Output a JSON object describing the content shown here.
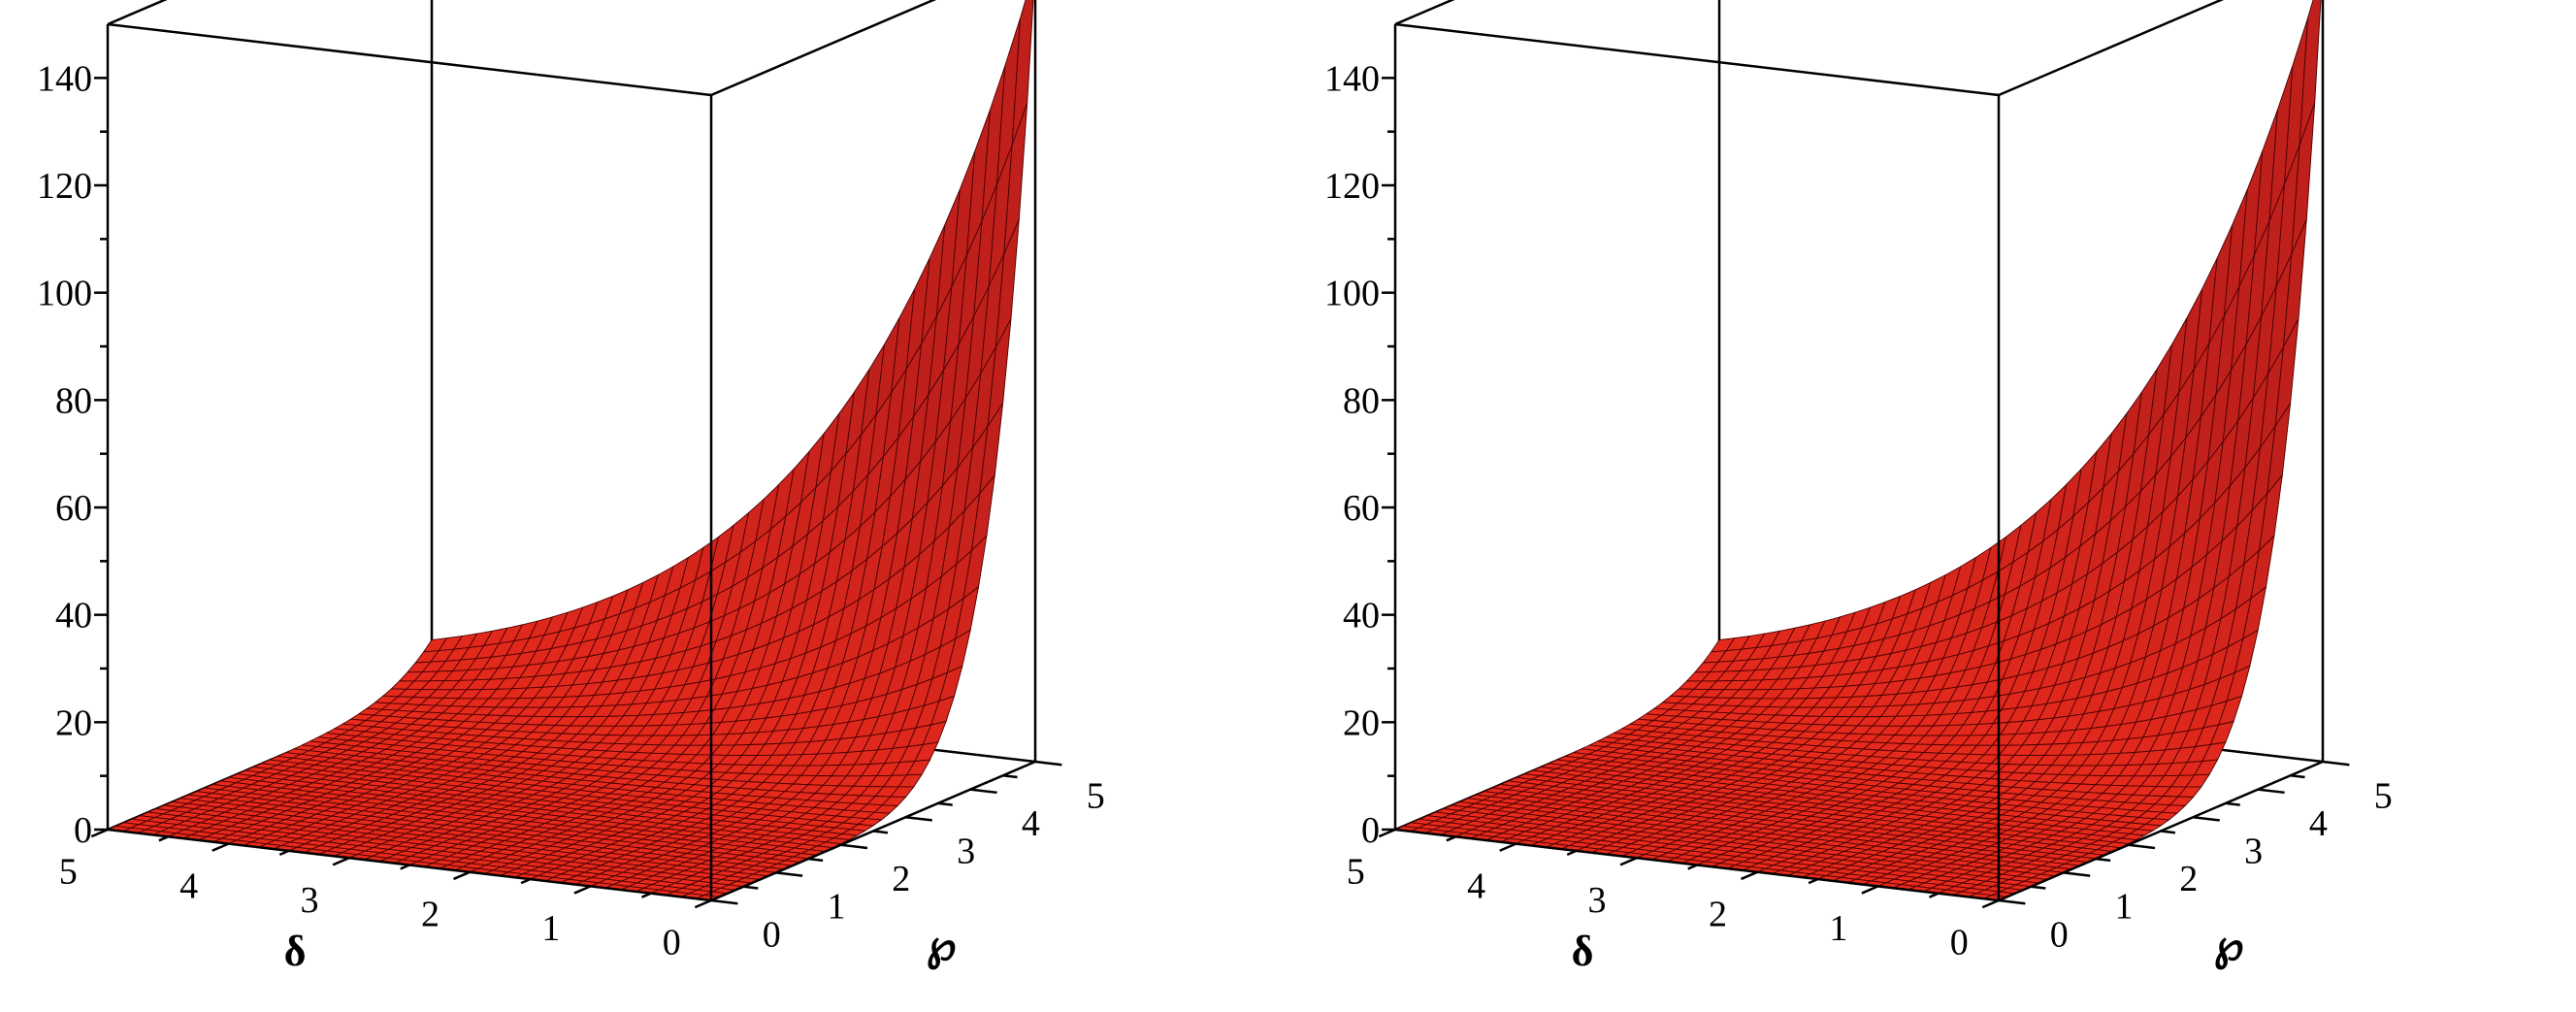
{
  "chart_data": [
    {
      "type": "surface3d",
      "title": "",
      "xlabel": "δ",
      "ylabel": "℘",
      "zlabel": "",
      "x_range": [
        0,
        5
      ],
      "y_range": [
        0,
        5
      ],
      "z_range": [
        0,
        150
      ],
      "x_ticks": [
        "0",
        "1",
        "2",
        "3",
        "4",
        "5"
      ],
      "y_ticks": [
        "0",
        "1",
        "2",
        "3",
        "4",
        "5"
      ],
      "z_ticks": [
        "0",
        "20",
        "40",
        "60",
        "80",
        "100",
        "120",
        "140"
      ],
      "surface_color": "#e8201c",
      "samples": {
        "description_free": true,
        "points": [
          {
            "x": 0,
            "y": 0,
            "z": 0
          },
          {
            "x": 5,
            "y": 0,
            "z": 0
          },
          {
            "x": 0,
            "y": 3,
            "z": 6
          },
          {
            "x": 0,
            "y": 4,
            "z": 30
          },
          {
            "x": 0,
            "y": 5,
            "z": 148
          }
        ]
      }
    },
    {
      "type": "surface3d",
      "title": "",
      "xlabel": "δ",
      "ylabel": "℘",
      "zlabel": "",
      "x_range": [
        0,
        5
      ],
      "y_range": [
        0,
        5
      ],
      "z_range": [
        0,
        150
      ],
      "x_ticks": [
        "0",
        "1",
        "2",
        "3",
        "4",
        "5"
      ],
      "y_ticks": [
        "0",
        "1",
        "2",
        "3",
        "4",
        "5"
      ],
      "z_ticks": [
        "0",
        "20",
        "40",
        "60",
        "80",
        "100",
        "120",
        "140"
      ],
      "surface_color": "#e8201c",
      "samples": {
        "description_free": true,
        "points": [
          {
            "x": 0,
            "y": 0,
            "z": 0
          },
          {
            "x": 5,
            "y": 0,
            "z": 0
          },
          {
            "x": 0,
            "y": 3,
            "z": 6
          },
          {
            "x": 0,
            "y": 4,
            "z": 30
          },
          {
            "x": 0,
            "y": 5,
            "z": 148
          }
        ]
      }
    }
  ]
}
